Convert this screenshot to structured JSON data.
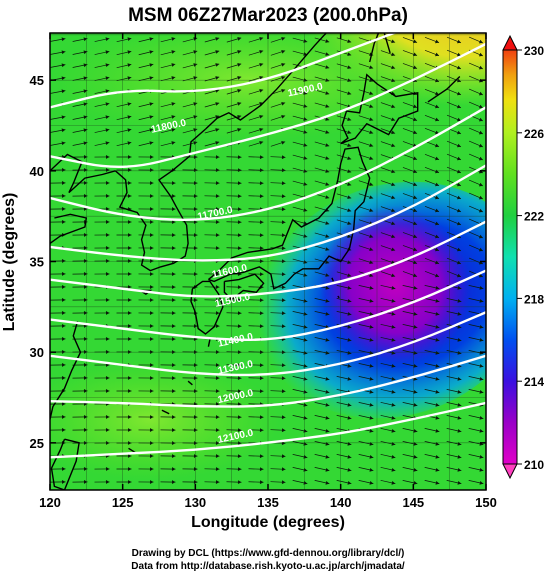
{
  "title": "MSM 06Z27Mar2023 (200.0hPa)",
  "xlabel": "Longitude (degrees)",
  "ylabel": "Latitude  (degrees)",
  "footer": {
    "line1": "Drawing by DCL (https://www.gfd-dennou.org/library/dcl/)",
    "line2": "Data from http://database.rish.kyoto-u.ac.jp/arch/jmadata/"
  },
  "chart_data": {
    "type": "heatmap",
    "title": "MSM 06Z27Mar2023 (200.0hPa)",
    "xlabel": "Longitude (degrees)",
    "ylabel": "Latitude  (degrees)",
    "xlim": [
      120,
      150
    ],
    "ylim": [
      22.4,
      47.6
    ],
    "xticks": [
      120,
      125,
      130,
      135,
      140,
      145,
      150
    ],
    "yticks": [
      25,
      30,
      35,
      40,
      45
    ],
    "colorbar": {
      "ticks": [
        210,
        214,
        218,
        222,
        226,
        230
      ],
      "min": 210,
      "max": 230,
      "colors": [
        "#e000c8",
        "#9a00c8",
        "#3a10e0",
        "#0050f0",
        "#00b0f0",
        "#10e0b0",
        "#20d040",
        "#60e020",
        "#b0f020",
        "#f0e010",
        "#f0a010",
        "#f04010"
      ]
    },
    "contour_labels": [
      {
        "text": "11800.0",
        "lon": 128.2,
        "lat": 42.3
      },
      {
        "text": "11900.0",
        "lon": 137.6,
        "lat": 44.3
      },
      {
        "text": "11700.0",
        "lon": 131.4,
        "lat": 37.5
      },
      {
        "text": "11600.0",
        "lon": 132.4,
        "lat": 34.3
      },
      {
        "text": "11500.0",
        "lon": 132.6,
        "lat": 32.7
      },
      {
        "text": "11400.0",
        "lon": 132.8,
        "lat": 30.5
      },
      {
        "text": "11300.0",
        "lon": 132.8,
        "lat": 29.0
      },
      {
        "text": "12000.0",
        "lon": 132.8,
        "lat": 27.4
      },
      {
        "text": "12100.0",
        "lon": 132.8,
        "lat": 25.2
      }
    ],
    "contour_heights": [
      11300,
      11400,
      11500,
      11600,
      11700,
      11800,
      11900,
      12000,
      12100
    ]
  }
}
